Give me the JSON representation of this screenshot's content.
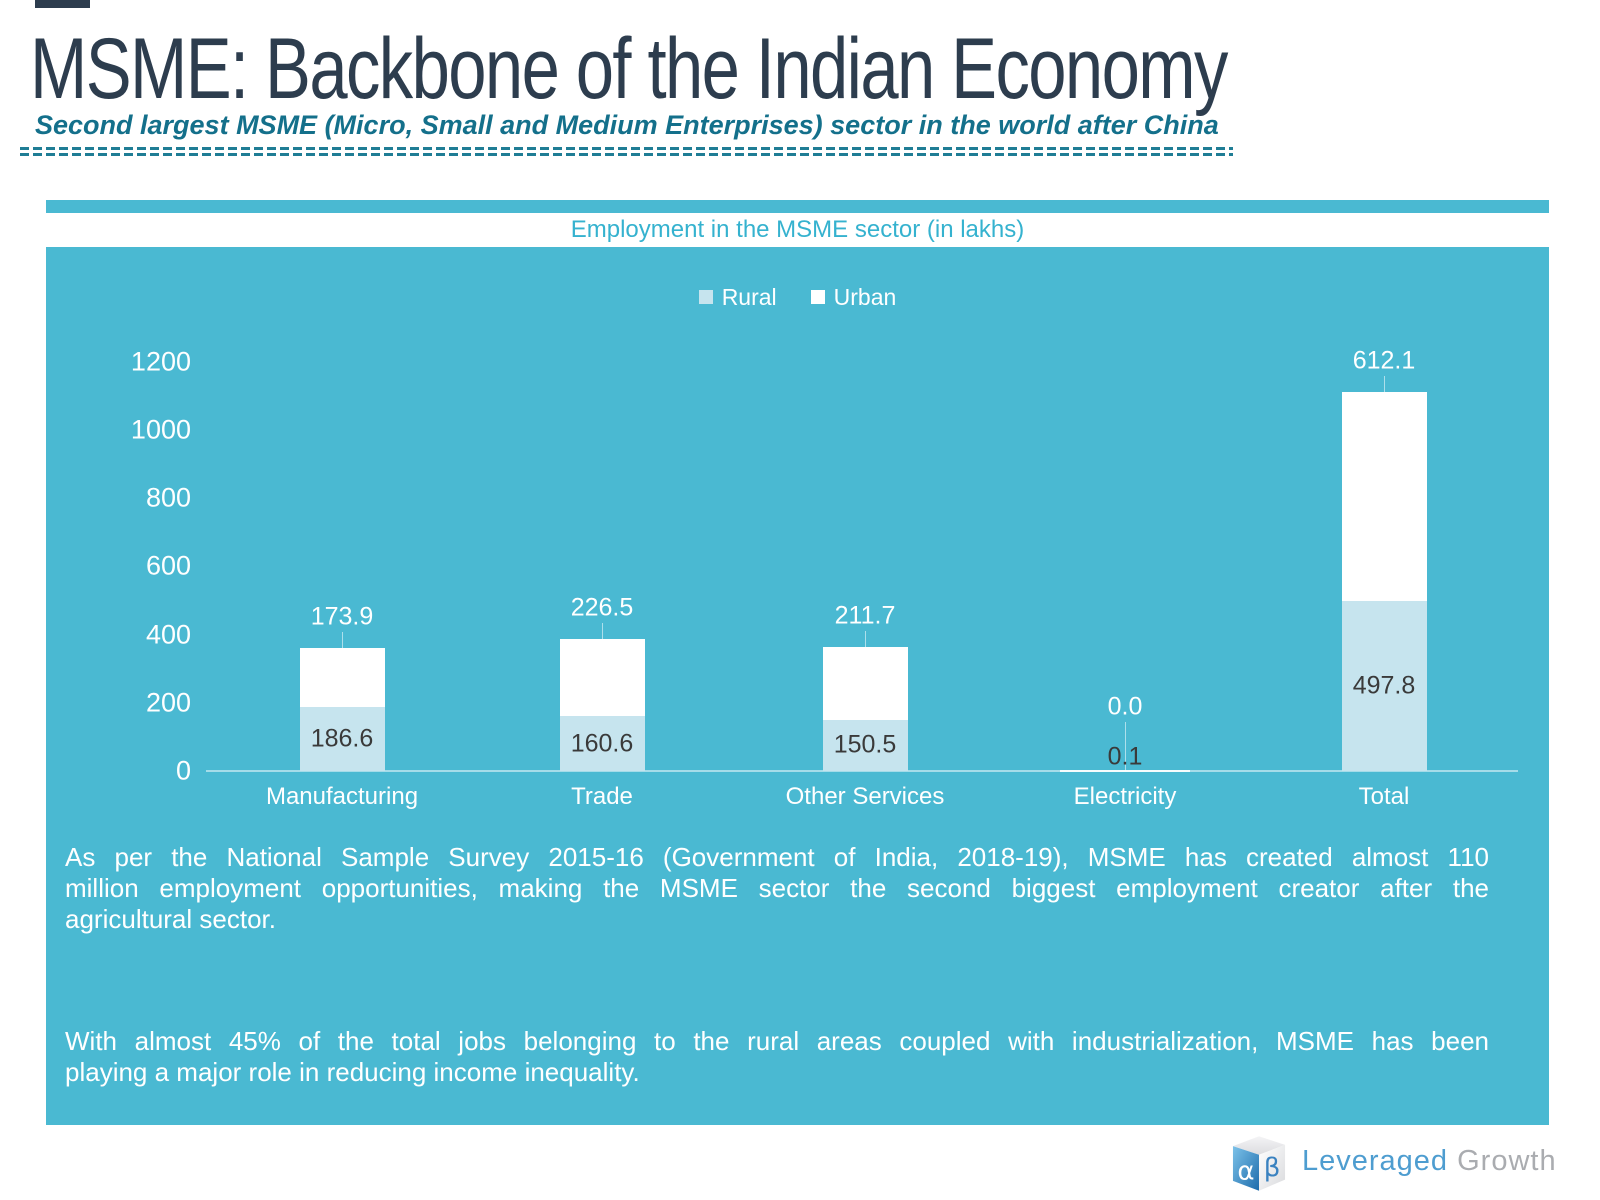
{
  "header": {
    "title": "MSME: Backbone of the Indian Economy",
    "subtitle": "Second largest MSME (Micro, Small and Medium Enterprises) sector in the world after China"
  },
  "chart_data": {
    "type": "bar",
    "stacked": true,
    "title": "Employment in the MSME sector (in lakhs)",
    "categories": [
      "Manufacturing",
      "Trade",
      "Other Services",
      "Electricity",
      "Total"
    ],
    "series": [
      {
        "name": "Rural",
        "color": "#c6e4ee",
        "values": [
          186.6,
          160.6,
          150.5,
          0.1,
          497.8
        ]
      },
      {
        "name": "Urban",
        "color": "#ffffff",
        "values": [
          173.9,
          226.5,
          211.7,
          0.0,
          612.1
        ]
      }
    ],
    "ylabel": "",
    "xlabel": "",
    "ylim": [
      0,
      1200
    ],
    "ytick_step": 200,
    "grid": false,
    "legend_position": "top"
  },
  "body": {
    "paragraphs": [
      {
        "lines": [
          "As per the National Sample Survey 2015-16 (Government of India, 2018-19), MSME has created almost 110",
          "million employment opportunities, making the MSME sector the second biggest employment creator after the",
          "agricultural sector."
        ]
      },
      {
        "lines": [
          "With almost 45% of the total jobs belonging to the rural areas coupled with industrialization, MSME has been",
          "playing a major role in reducing income inequality."
        ]
      }
    ]
  },
  "footer": {
    "logo_alpha": "α",
    "logo_beta": "β",
    "brand_primary": "Leveraged",
    "brand_secondary": "Growth"
  },
  "colors": {
    "panel_teal": "#4ab9d2",
    "rural_fill": "#c6e4ee",
    "urban_fill": "#ffffff",
    "title_navy": "#2d3d4e",
    "subtitle_teal": "#14708b",
    "chart_title_teal": "#35b2cf",
    "value_label_dark": "#3a3a3a",
    "logo_blue": "#4e9dd0",
    "logo_gray": "#aaacb0"
  }
}
